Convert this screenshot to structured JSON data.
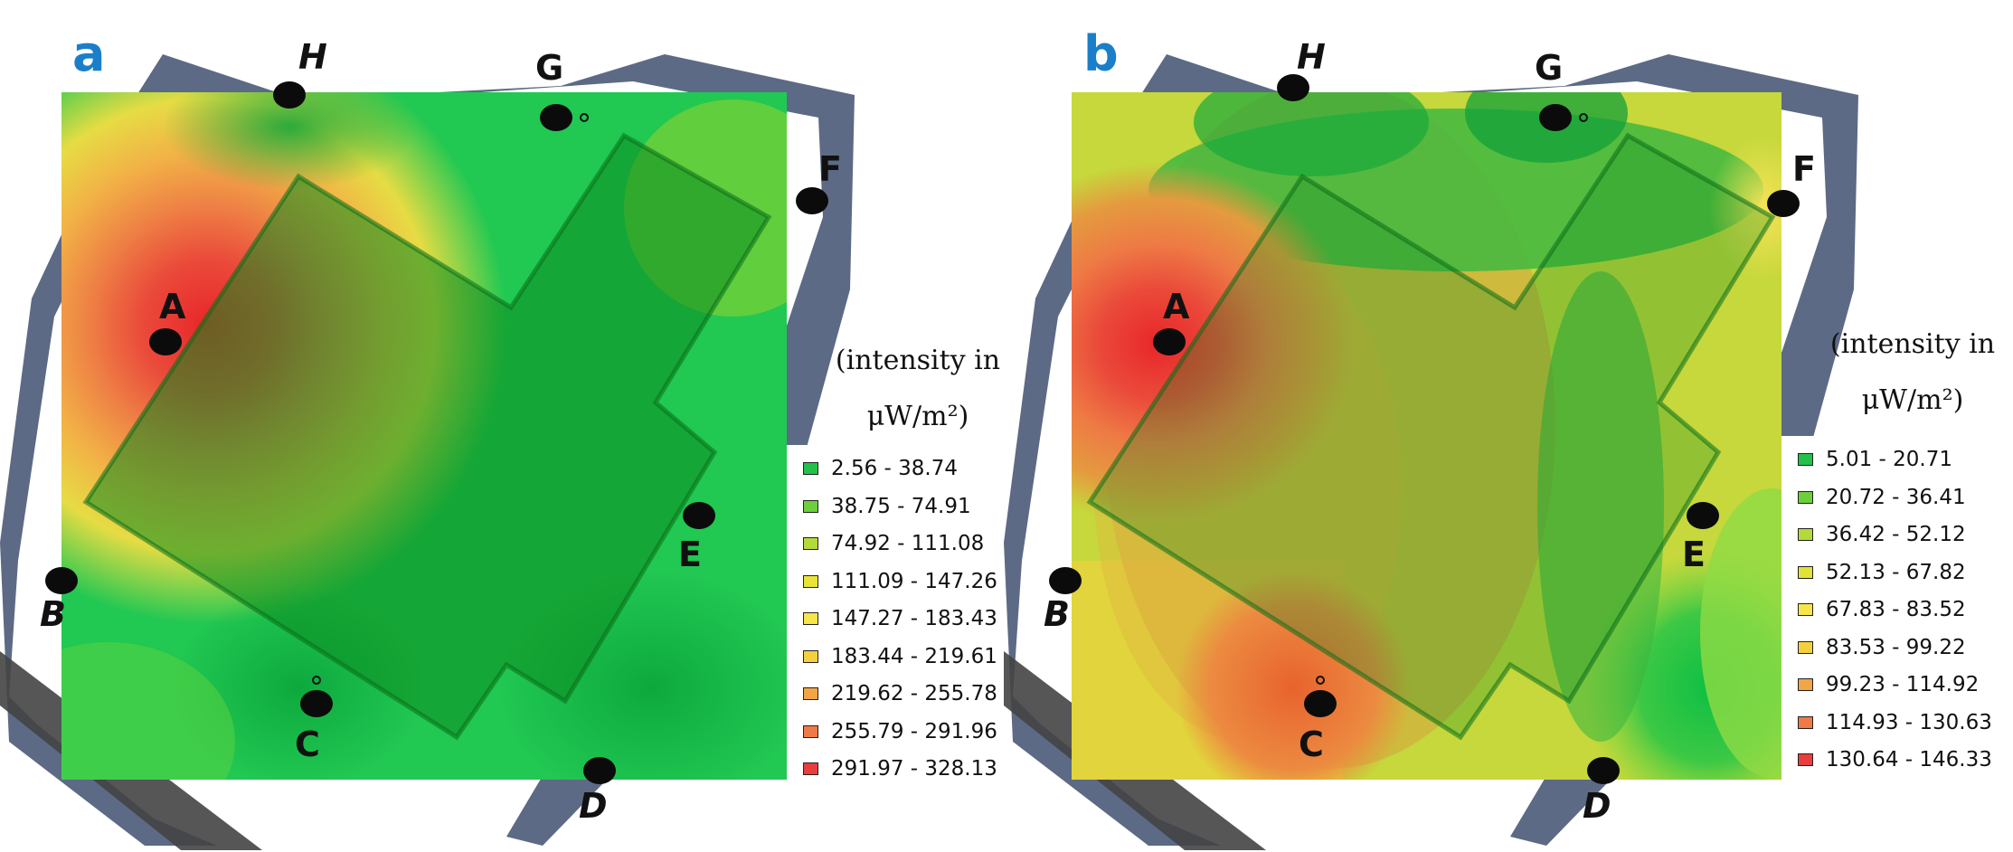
{
  "panels": [
    {
      "id": "a",
      "letter": "a",
      "legend_title_line1": "(intensity in",
      "legend_title_line2": "μW/m²)",
      "legend": [
        {
          "range": "2.56 - 38.74",
          "color": "#22c24a"
        },
        {
          "range": "38.75 - 74.91",
          "color": "#6ccf3b"
        },
        {
          "range": "74.92 - 111.08",
          "color": "#b4d93a"
        },
        {
          "range": "111.09 - 147.26",
          "color": "#e8e43a"
        },
        {
          "range": "147.27 - 183.43",
          "color": "#f6e64a"
        },
        {
          "range": "183.44 - 219.61",
          "color": "#f4d03e"
        },
        {
          "range": "219.62 - 255.78",
          "color": "#f1a544"
        },
        {
          "range": "255.79 - 291.96",
          "color": "#ee7a48"
        },
        {
          "range": "291.97 - 328.13",
          "color": "#ea3d3d"
        }
      ],
      "points": [
        "A",
        "B",
        "C",
        "D",
        "E",
        "F",
        "G",
        "H"
      ]
    },
    {
      "id": "b",
      "letter": "b",
      "legend_title_line1": "(intensity in",
      "legend_title_line2": "μW/m²)",
      "legend": [
        {
          "range": "5.01 - 20.71",
          "color": "#22c24a"
        },
        {
          "range": "20.72 - 36.41",
          "color": "#6ccf3b"
        },
        {
          "range": "36.42 - 52.12",
          "color": "#b4d93a"
        },
        {
          "range": "52.13 - 67.82",
          "color": "#e0e23a"
        },
        {
          "range": "67.83 - 83.52",
          "color": "#f6e64a"
        },
        {
          "range": "83.53 - 99.22",
          "color": "#f4d03e"
        },
        {
          "range": "99.23 - 114.92",
          "color": "#f1a544"
        },
        {
          "range": "114.93 - 130.63",
          "color": "#ee7a48"
        },
        {
          "range": "130.64 - 146.33",
          "color": "#ea3d3d"
        }
      ],
      "points": [
        "A",
        "B",
        "C",
        "D",
        "E",
        "F",
        "G",
        "H"
      ]
    }
  ]
}
